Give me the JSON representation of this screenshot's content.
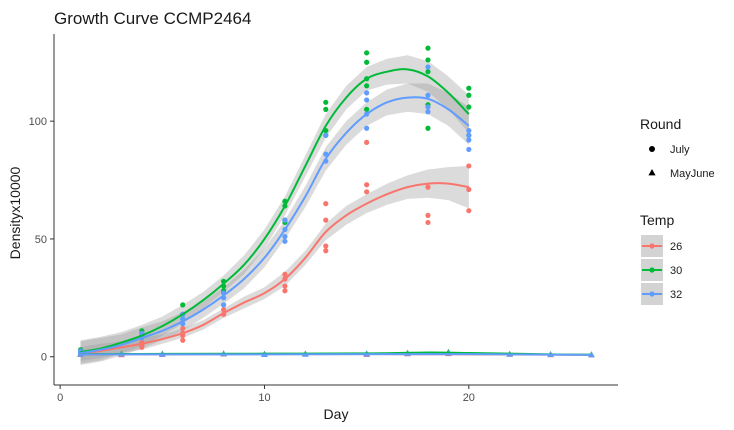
{
  "chart_data": {
    "type": "scatter",
    "title": "Growth Curve CCMP2464",
    "xlabel": "Day",
    "ylabel": "Densityx10000",
    "xlim": [
      -0.3,
      27.3
    ],
    "ylim": [
      -12,
      137
    ],
    "x_ticks": [
      0,
      10,
      20
    ],
    "y_ticks": [
      0,
      50,
      100
    ],
    "grid": false,
    "legend_position": "right",
    "legends": {
      "round": {
        "title": "Round",
        "entries": [
          {
            "label": "July",
            "shape": "circle"
          },
          {
            "label": "MayJune",
            "shape": "triangle"
          }
        ]
      },
      "temp": {
        "title": "Temp",
        "entries": [
          {
            "label": "26",
            "color": "#F8766D"
          },
          {
            "label": "30",
            "color": "#00BA38"
          },
          {
            "label": "32",
            "color": "#619CFF"
          }
        ]
      }
    },
    "series": [
      {
        "name": "26",
        "round": "July",
        "color": "#F8766D",
        "points": [
          [
            1,
            1
          ],
          [
            1,
            2
          ],
          [
            1,
            1.5
          ],
          [
            4,
            4
          ],
          [
            4,
            5
          ],
          [
            4,
            6
          ],
          [
            6,
            7
          ],
          [
            6,
            9
          ],
          [
            6,
            10
          ],
          [
            6,
            12
          ],
          [
            8,
            18
          ],
          [
            8,
            20
          ],
          [
            8,
            22
          ],
          [
            11,
            28
          ],
          [
            11,
            30
          ],
          [
            11,
            33
          ],
          [
            11,
            35
          ],
          [
            13,
            45
          ],
          [
            13,
            47
          ],
          [
            13,
            58
          ],
          [
            13,
            65
          ],
          [
            15,
            70
          ],
          [
            15,
            73
          ],
          [
            15,
            91
          ],
          [
            18,
            57
          ],
          [
            18,
            60
          ],
          [
            18,
            72
          ],
          [
            20,
            62
          ],
          [
            20,
            71
          ],
          [
            20,
            81
          ]
        ],
        "curve": [
          [
            1,
            1.2
          ],
          [
            2,
            2.5
          ],
          [
            3,
            4
          ],
          [
            4,
            5.5
          ],
          [
            5,
            7.5
          ],
          [
            6,
            10
          ],
          [
            7,
            13.5
          ],
          [
            8,
            18.5
          ],
          [
            9,
            23
          ],
          [
            10,
            27
          ],
          [
            11,
            33
          ],
          [
            12,
            42
          ],
          [
            13,
            53
          ],
          [
            14,
            60
          ],
          [
            15,
            65
          ],
          [
            16,
            69
          ],
          [
            17,
            72
          ],
          [
            18,
            73.5
          ],
          [
            19,
            73.5
          ],
          [
            20,
            72
          ]
        ],
        "ci": [
          3,
          3,
          2.5,
          2.5,
          2,
          2,
          2,
          2,
          2.5,
          2.5,
          3,
          3,
          3.5,
          4,
          4,
          4.5,
          5,
          6,
          7,
          9
        ]
      },
      {
        "name": "30",
        "round": "July",
        "color": "#00BA38",
        "points": [
          [
            1,
            2
          ],
          [
            1,
            3
          ],
          [
            1,
            2.5
          ],
          [
            4,
            9
          ],
          [
            4,
            10
          ],
          [
            4,
            11
          ],
          [
            6,
            16
          ],
          [
            6,
            18
          ],
          [
            6,
            22
          ],
          [
            8,
            28
          ],
          [
            8,
            30
          ],
          [
            8,
            32
          ],
          [
            11,
            57
          ],
          [
            11,
            58
          ],
          [
            11,
            64
          ],
          [
            11,
            66
          ],
          [
            13,
            94
          ],
          [
            13,
            96
          ],
          [
            13,
            105
          ],
          [
            13,
            108
          ],
          [
            15,
            105
          ],
          [
            15,
            115
          ],
          [
            15,
            118
          ],
          [
            15,
            125
          ],
          [
            15,
            129
          ],
          [
            18,
            97
          ],
          [
            18,
            107
          ],
          [
            18,
            121
          ],
          [
            18,
            126
          ],
          [
            18,
            131
          ],
          [
            20,
            94
          ],
          [
            20,
            106
          ],
          [
            20,
            111
          ],
          [
            20,
            114
          ]
        ],
        "curve": [
          [
            1,
            2
          ],
          [
            2,
            3.5
          ],
          [
            3,
            6
          ],
          [
            4,
            9
          ],
          [
            5,
            13
          ],
          [
            6,
            18
          ],
          [
            7,
            24
          ],
          [
            8,
            31
          ],
          [
            9,
            39
          ],
          [
            10,
            50
          ],
          [
            11,
            64
          ],
          [
            12,
            81
          ],
          [
            13,
            98
          ],
          [
            14,
            110
          ],
          [
            15,
            118
          ],
          [
            16,
            121
          ],
          [
            17,
            122
          ],
          [
            18,
            119
          ],
          [
            19,
            112
          ],
          [
            20,
            103
          ]
        ],
        "ci": [
          5,
          5,
          4.5,
          4.5,
          4,
          4,
          3.5,
          3.5,
          4,
          4,
          4,
          4.5,
          5,
          5,
          5,
          5.5,
          6,
          6.5,
          7,
          8
        ]
      },
      {
        "name": "32",
        "round": "July",
        "color": "#619CFF",
        "points": [
          [
            1,
            1.5
          ],
          [
            1,
            2.5
          ],
          [
            1,
            2
          ],
          [
            4,
            8
          ],
          [
            4,
            9
          ],
          [
            4,
            10
          ],
          [
            6,
            14
          ],
          [
            6,
            16
          ],
          [
            6,
            18
          ],
          [
            8,
            22
          ],
          [
            8,
            25
          ],
          [
            8,
            27
          ],
          [
            11,
            49
          ],
          [
            11,
            51
          ],
          [
            11,
            54
          ],
          [
            11,
            58
          ],
          [
            13,
            83
          ],
          [
            13,
            86
          ],
          [
            13,
            94
          ],
          [
            15,
            97
          ],
          [
            15,
            103
          ],
          [
            15,
            109
          ],
          [
            15,
            112
          ],
          [
            18,
            104
          ],
          [
            18,
            106
          ],
          [
            18,
            111
          ],
          [
            18,
            123
          ],
          [
            20,
            88
          ],
          [
            20,
            92
          ],
          [
            20,
            94
          ],
          [
            20,
            96
          ]
        ],
        "curve": [
          [
            1,
            1.5
          ],
          [
            2,
            3
          ],
          [
            3,
            5
          ],
          [
            4,
            8
          ],
          [
            5,
            11
          ],
          [
            6,
            15
          ],
          [
            7,
            20
          ],
          [
            8,
            26
          ],
          [
            9,
            33
          ],
          [
            10,
            42
          ],
          [
            11,
            54
          ],
          [
            12,
            68
          ],
          [
            13,
            84
          ],
          [
            14,
            95
          ],
          [
            15,
            103
          ],
          [
            16,
            108
          ],
          [
            17,
            110
          ],
          [
            18,
            109.5
          ],
          [
            19,
            105
          ],
          [
            20,
            98
          ]
        ],
        "ci": [
          5,
          5,
          4.5,
          4.5,
          4,
          4,
          3.5,
          3.5,
          4,
          4,
          4,
          4.5,
          5,
          5,
          5,
          5.5,
          6,
          6.5,
          7,
          8
        ]
      },
      {
        "name": "26",
        "round": "MayJune",
        "color": "#F8766D",
        "points": [
          [
            1,
            0.8
          ],
          [
            3,
            0.7
          ],
          [
            5,
            0.8
          ],
          [
            8,
            1
          ],
          [
            10,
            0.9
          ],
          [
            12,
            1
          ],
          [
            15,
            0.8
          ],
          [
            17,
            1.1
          ],
          [
            19,
            1.2
          ],
          [
            22,
            0.9
          ],
          [
            24,
            0.7
          ],
          [
            26,
            0.6
          ]
        ],
        "curve": [
          [
            1,
            1
          ],
          [
            5,
            1
          ],
          [
            10,
            1.1
          ],
          [
            15,
            1.1
          ],
          [
            20,
            1
          ],
          [
            24,
            0.9
          ],
          [
            26,
            0.8
          ]
        ]
      },
      {
        "name": "30",
        "round": "MayJune",
        "color": "#00BA38",
        "points": [
          [
            1,
            1
          ],
          [
            3,
            1.2
          ],
          [
            5,
            1.1
          ],
          [
            8,
            1.2
          ],
          [
            10,
            1
          ],
          [
            12,
            1.1
          ],
          [
            15,
            1.2
          ],
          [
            17,
            1.5
          ],
          [
            19,
            1.8
          ],
          [
            22,
            1
          ],
          [
            24,
            0.9
          ],
          [
            26,
            0.8
          ]
        ],
        "curve": [
          [
            1,
            1.1
          ],
          [
            5,
            1.2
          ],
          [
            10,
            1.3
          ],
          [
            15,
            1.4
          ],
          [
            18,
            1.8
          ],
          [
            20,
            1.6
          ],
          [
            24,
            1
          ],
          [
            26,
            0.9
          ]
        ]
      },
      {
        "name": "32",
        "round": "MayJune",
        "color": "#619CFF",
        "points": [
          [
            1,
            0.9
          ],
          [
            3,
            1
          ],
          [
            5,
            0.9
          ],
          [
            8,
            1.1
          ],
          [
            10,
            0.8
          ],
          [
            12,
            0.9
          ],
          [
            15,
            1
          ],
          [
            17,
            1.2
          ],
          [
            19,
            1.3
          ],
          [
            22,
            0.9
          ],
          [
            24,
            0.8
          ],
          [
            26,
            0.7
          ]
        ],
        "curve": [
          [
            1,
            1
          ],
          [
            5,
            1
          ],
          [
            10,
            1
          ],
          [
            15,
            1.1
          ],
          [
            20,
            1.1
          ],
          [
            24,
            0.9
          ],
          [
            26,
            0.8
          ]
        ]
      }
    ]
  }
}
